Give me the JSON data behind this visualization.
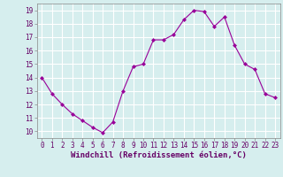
{
  "x": [
    0,
    1,
    2,
    3,
    4,
    5,
    6,
    7,
    8,
    9,
    10,
    11,
    12,
    13,
    14,
    15,
    16,
    17,
    18,
    19,
    20,
    21,
    22,
    23
  ],
  "y": [
    14.0,
    12.8,
    12.0,
    11.3,
    10.8,
    10.3,
    9.9,
    10.7,
    13.0,
    14.8,
    15.0,
    16.8,
    16.8,
    17.2,
    18.3,
    19.0,
    18.9,
    17.8,
    18.5,
    16.4,
    15.0,
    14.6,
    12.8,
    12.5
  ],
  "line_color": "#990099",
  "marker": "D",
  "marker_size": 2.0,
  "line_width": 0.8,
  "bg_color": "#d6eeee",
  "grid_color": "#ffffff",
  "xlabel": "Windchill (Refroidissement éolien,°C)",
  "xlabel_fontsize": 6.5,
  "tick_fontsize": 5.5,
  "ylim": [
    9.5,
    19.5
  ],
  "xlim": [
    -0.5,
    23.5
  ],
  "yticks": [
    10,
    11,
    12,
    13,
    14,
    15,
    16,
    17,
    18,
    19
  ],
  "xticks": [
    0,
    1,
    2,
    3,
    4,
    5,
    6,
    7,
    8,
    9,
    10,
    11,
    12,
    13,
    14,
    15,
    16,
    17,
    18,
    19,
    20,
    21,
    22,
    23
  ],
  "fig_width": 3.2,
  "fig_height": 2.0,
  "dpi": 100
}
